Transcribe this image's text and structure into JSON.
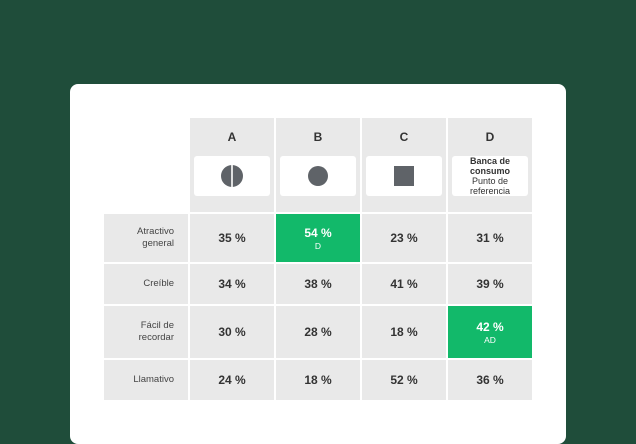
{
  "columns": [
    {
      "letter": "A",
      "icon": "half-circle-icon"
    },
    {
      "letter": "B",
      "icon": "circle-icon"
    },
    {
      "letter": "C",
      "icon": "square-icon"
    },
    {
      "letter": "D",
      "title_line1": "Banca de",
      "title_line2": "consumo",
      "sub_line1": "Punto de",
      "sub_line2": "referencia"
    }
  ],
  "rows": [
    {
      "label_line1": "Atractivo",
      "label_line2": "general",
      "values": [
        "35 %",
        "54 %",
        "23 %",
        "31 %"
      ],
      "highlight": {
        "col": 1,
        "tag": "D"
      }
    },
    {
      "label_line1": "Creíble",
      "label_line2": "",
      "values": [
        "34 %",
        "38 %",
        "41 %",
        "39 %"
      ]
    },
    {
      "label_line1": "Fácil de",
      "label_line2": "recordar",
      "values": [
        "30 %",
        "28 %",
        "18 %",
        "42 %"
      ],
      "highlight": {
        "col": 3,
        "tag": "AD"
      }
    },
    {
      "label_line1": "Llamativo",
      "label_line2": "",
      "values": [
        "24 %",
        "18 %",
        "52 %",
        "36 %"
      ]
    }
  ],
  "colors": {
    "background": "#1f4d3a",
    "card": "#ffffff",
    "cell": "#e9e9e9",
    "highlight": "#12b96a",
    "icon": "#5f6368"
  }
}
